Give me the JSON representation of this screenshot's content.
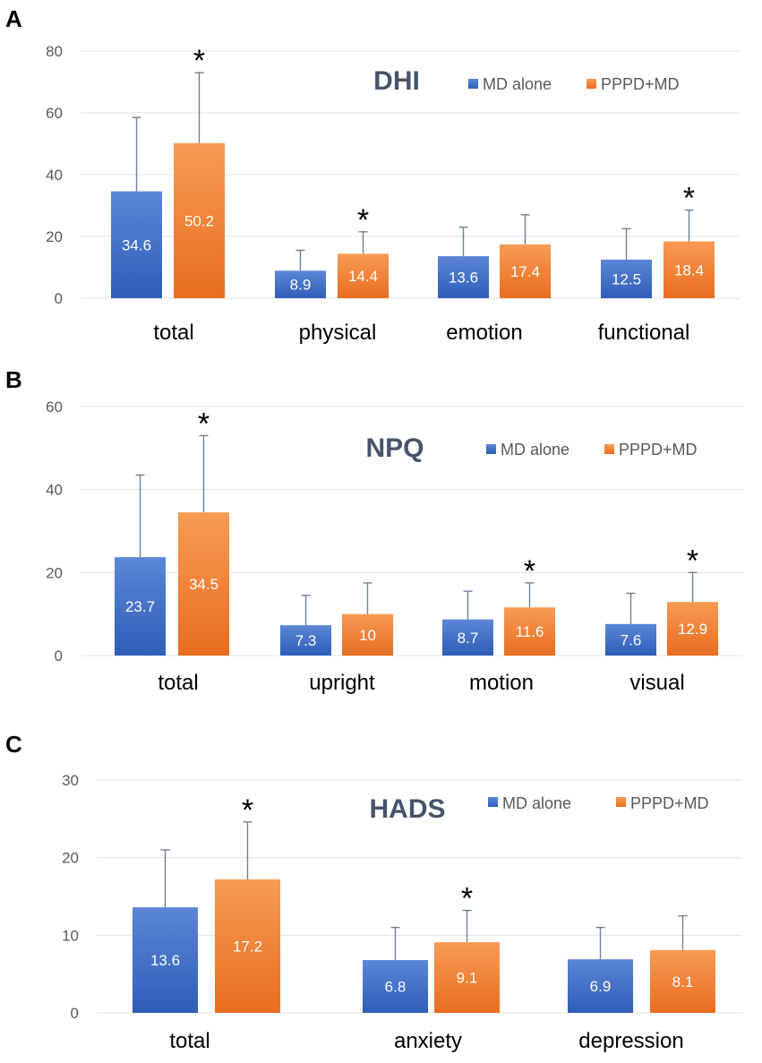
{
  "colors": {
    "md_alone_top": "#5b86d6",
    "md_alone_bottom": "#2f5db8",
    "pppd_md_top": "#f79b55",
    "pppd_md_bottom": "#e96d1f",
    "title": "#44546a"
  },
  "legend": {
    "series_a": "MD alone",
    "series_b": "PPPD+MD"
  },
  "chart_data": [
    {
      "type": "bar",
      "panel": "A",
      "title": "DHI",
      "categories": [
        "total",
        "physical",
        "emotion",
        "functional"
      ],
      "series": [
        {
          "name": "MD alone",
          "values": [
            34.6,
            8.9,
            13.6,
            12.5
          ],
          "labels": [
            "34.6",
            "8.9",
            "13.6",
            "12.5"
          ],
          "error_upper": [
            58.5,
            15.5,
            23,
            22.5
          ]
        },
        {
          "name": "PPPD+MD",
          "values": [
            50.2,
            14.4,
            17.4,
            18.4
          ],
          "labels": [
            "50.2",
            "14.4",
            "17.4",
            "18.4"
          ],
          "error_upper": [
            73,
            21.5,
            27,
            28.5
          ]
        }
      ],
      "significant": [
        true,
        true,
        false,
        true
      ],
      "significance_marker": "*",
      "yticks": [
        0,
        20,
        40,
        60,
        80
      ],
      "ylim": [
        0,
        80
      ],
      "grid": true,
      "legend_position": "top-right"
    },
    {
      "type": "bar",
      "panel": "B",
      "title": "NPQ",
      "categories": [
        "total",
        "upright",
        "motion",
        "visual"
      ],
      "series": [
        {
          "name": "MD alone",
          "values": [
            23.7,
            7.3,
            8.7,
            7.6
          ],
          "labels": [
            "23.7",
            "7.3",
            "8.7",
            "7.6"
          ],
          "error_upper": [
            43.5,
            14.5,
            15.5,
            15
          ]
        },
        {
          "name": "PPPD+MD",
          "values": [
            34.5,
            10,
            11.6,
            12.9
          ],
          "labels": [
            "34.5",
            "10",
            "11.6",
            "12.9"
          ],
          "error_upper": [
            53,
            17.5,
            17.5,
            20
          ]
        }
      ],
      "significant": [
        true,
        false,
        true,
        true
      ],
      "significance_marker": "*",
      "yticks": [
        0,
        20,
        40,
        60
      ],
      "ylim": [
        0,
        60
      ],
      "grid": true,
      "legend_position": "top-right"
    },
    {
      "type": "bar",
      "panel": "C",
      "title": "HADS",
      "categories": [
        "total",
        "anxiety",
        "depression"
      ],
      "series": [
        {
          "name": "MD alone",
          "values": [
            13.6,
            6.8,
            6.9
          ],
          "labels": [
            "13.6",
            "6.8",
            "6.9"
          ],
          "error_upper": [
            21,
            11,
            11
          ]
        },
        {
          "name": "PPPD+MD",
          "values": [
            17.2,
            9.1,
            8.1
          ],
          "labels": [
            "17.2",
            "9.1",
            "8.1"
          ],
          "error_upper": [
            24.6,
            13.2,
            12.5
          ]
        }
      ],
      "significant": [
        true,
        true,
        false
      ],
      "significance_marker": "*",
      "yticks": [
        0,
        10,
        20,
        30
      ],
      "ylim": [
        0,
        30
      ],
      "grid": true,
      "legend_position": "top-right"
    }
  ]
}
